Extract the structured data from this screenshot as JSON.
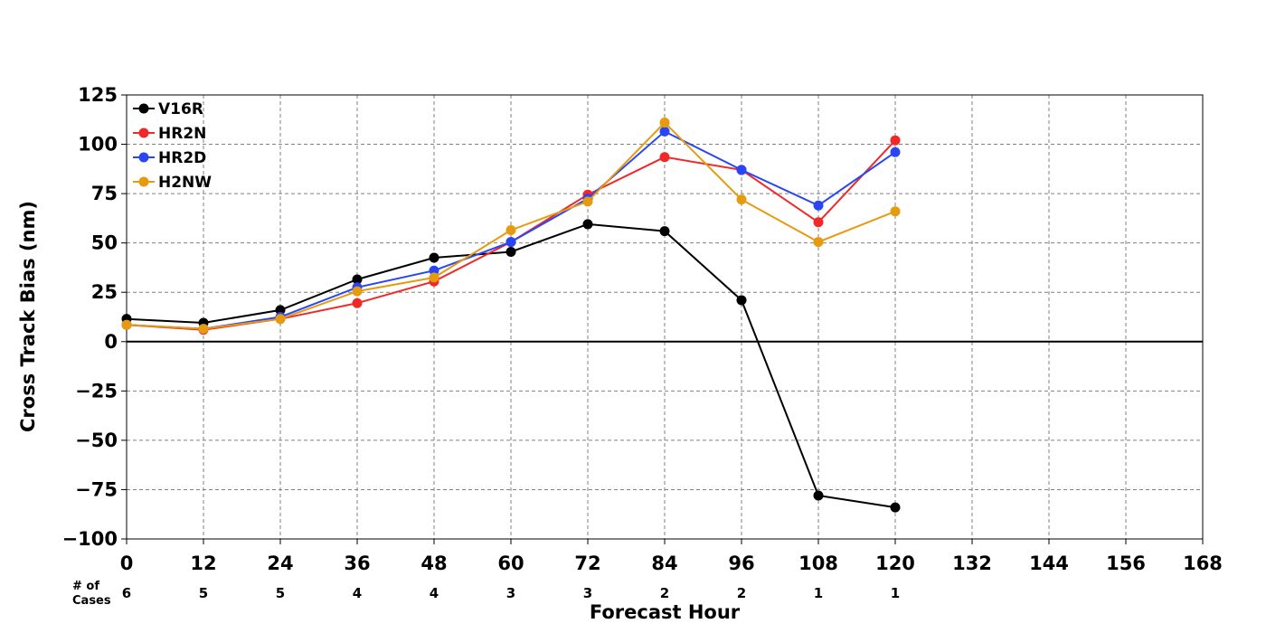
{
  "chart_data": {
    "type": "line",
    "title": "",
    "xlabel": "Forecast Hour",
    "ylabel": "Cross Track Bias (nm)",
    "xlim": [
      0,
      168
    ],
    "ylim": [
      -100,
      125
    ],
    "x_ticks": [
      0,
      12,
      24,
      36,
      48,
      60,
      72,
      84,
      96,
      108,
      120,
      132,
      144,
      156,
      168
    ],
    "y_ticks": [
      -100,
      -75,
      -50,
      -25,
      0,
      25,
      50,
      75,
      100,
      125
    ],
    "y_tick_labels": [
      "−100",
      "−75",
      "−50",
      "−25",
      "0",
      "25",
      "50",
      "75",
      "100",
      "125"
    ],
    "grid": true,
    "legend_position": "top-left",
    "cases": {
      "label_line1": "# of",
      "label_line2": "Cases",
      "hours": [
        0,
        12,
        24,
        36,
        48,
        60,
        72,
        84,
        96,
        108,
        120
      ],
      "counts": [
        "6",
        "5",
        "5",
        "4",
        "4",
        "3",
        "3",
        "2",
        "2",
        "1",
        "1"
      ]
    },
    "x": [
      0,
      12,
      24,
      36,
      48,
      60,
      72,
      84,
      96,
      108,
      120
    ],
    "series": [
      {
        "name": "V16R",
        "color": "#000000",
        "values": [
          11.5,
          9.5,
          16,
          31.5,
          42.5,
          45.5,
          59.5,
          56,
          21,
          -78,
          -84
        ]
      },
      {
        "name": "HR2N",
        "color": "#f02828",
        "values": [
          8.5,
          6,
          11.5,
          19.5,
          30.5,
          50.5,
          74.5,
          93.5,
          87,
          60.5,
          102
        ]
      },
      {
        "name": "HR2D",
        "color": "#2846f5",
        "values": [
          8.5,
          6.5,
          12.5,
          27.5,
          36,
          50.5,
          72.5,
          106.5,
          87,
          69,
          96
        ]
      },
      {
        "name": "H2NW",
        "color": "#e69b0f",
        "values": [
          8.5,
          6.5,
          11.5,
          25.5,
          32.5,
          56.5,
          71,
          111,
          72,
          50.5,
          66
        ]
      }
    ]
  }
}
